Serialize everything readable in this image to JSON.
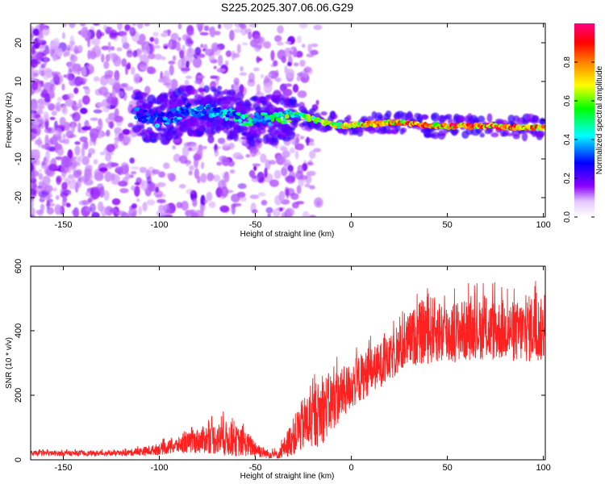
{
  "chart_data": [
    {
      "type": "heatmap",
      "title": "S225.2025.307.06.06.G29",
      "xlabel": "Height of straight line (km)",
      "ylabel": "Frequency (Hz)",
      "xlim": [
        -167,
        101
      ],
      "ylim": [
        -25,
        25
      ],
      "xticks": [
        -150,
        -100,
        -50,
        0,
        50,
        100
      ],
      "yticks": [
        -20,
        -10,
        0,
        10,
        20
      ],
      "colorbar": {
        "label": "Normalized spectral amplitude",
        "range": [
          0,
          1
        ],
        "ticks": [
          0.0,
          0.2,
          0.4,
          0.6,
          0.8
        ],
        "tick_labels": [
          "0.0",
          "0.2",
          "0.4",
          "0.6",
          "0.8"
        ],
        "colormap": [
          "#ffffff",
          "#8a00ff",
          "#0000ff",
          "#00ffff",
          "#00ff00",
          "#ffff00",
          "#ff8000",
          "#ff0000",
          "#ff0080"
        ]
      },
      "ridge": {
        "description": "dominant frequency track",
        "points": [
          {
            "h": -112,
            "f": 1.5,
            "amp": 0.3
          },
          {
            "h": -100,
            "f": 0.0,
            "amp": 0.35
          },
          {
            "h": -85,
            "f": 2.5,
            "amp": 0.35
          },
          {
            "h": -70,
            "f": 2.5,
            "amp": 0.4
          },
          {
            "h": -55,
            "f": 0.0,
            "amp": 0.45
          },
          {
            "h": -40,
            "f": 0.5,
            "amp": 0.5
          },
          {
            "h": -28,
            "f": 1.5,
            "amp": 0.55
          },
          {
            "h": -15,
            "f": -0.5,
            "amp": 0.65
          },
          {
            "h": -5,
            "f": -1.5,
            "amp": 0.75
          },
          {
            "h": 10,
            "f": -1.0,
            "amp": 0.8
          },
          {
            "h": 25,
            "f": -0.5,
            "amp": 0.85
          },
          {
            "h": 40,
            "f": -1.5,
            "amp": 0.9
          },
          {
            "h": 55,
            "f": -1.5,
            "amp": 0.9
          },
          {
            "h": 70,
            "f": -1.5,
            "amp": 0.95
          },
          {
            "h": 85,
            "f": -1.8,
            "amp": 0.9
          },
          {
            "h": 100,
            "f": -2.0,
            "amp": 0.85
          }
        ]
      }
    },
    {
      "type": "line",
      "xlabel": "Height of straight line (km)",
      "ylabel": "SNR (10 * v/v)",
      "xlim": [
        -167,
        101
      ],
      "ylim": [
        0,
        600
      ],
      "xticks": [
        -150,
        -100,
        -50,
        0,
        50,
        100
      ],
      "yticks": [
        0,
        200,
        400,
        600
      ],
      "series": [
        {
          "name": "SNR",
          "color": "#ff2020",
          "envelope": {
            "x": [
              -167,
              -140,
              -120,
              -105,
              -90,
              -75,
              -65,
              -55,
              -45,
              -38,
              -32,
              -25,
              -20,
              -15,
              -10,
              -5,
              0,
              5,
              10,
              15,
              20,
              25,
              30,
              35,
              40,
              45,
              50,
              55,
              60,
              65,
              70,
              75,
              80,
              85,
              90,
              95,
              100
            ],
            "mean": [
              20,
              20,
              20,
              28,
              45,
              65,
              65,
              50,
              20,
              15,
              60,
              110,
              125,
              155,
              180,
              205,
              230,
              255,
              275,
              295,
              310,
              340,
              370,
              390,
              405,
              400,
              390,
              400,
              400,
              405,
              400,
              400,
              405,
              395,
              400,
              410,
              400
            ],
            "amplitude": [
              8,
              8,
              8,
              15,
              25,
              45,
              55,
              40,
              15,
              12,
              50,
              85,
              95,
              105,
              95,
              80,
              75,
              75,
              70,
              70,
              70,
              75,
              85,
              95,
              110,
              100,
              100,
              95,
              95,
              90,
              95,
              95,
              95,
              95,
              100,
              110,
              95
            ]
          }
        }
      ]
    }
  ]
}
